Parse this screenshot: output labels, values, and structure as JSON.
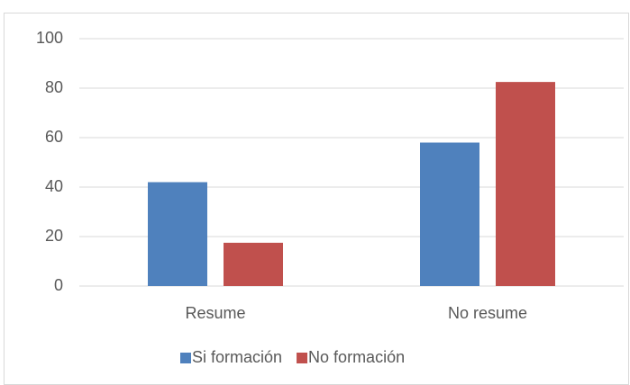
{
  "chart_data": {
    "type": "bar",
    "categories": [
      "Resume",
      "No resume"
    ],
    "series": [
      {
        "name": "Si formación",
        "color": "#4f81bd",
        "values": [
          42,
          58
        ]
      },
      {
        "name": "No formación",
        "color": "#c0504d",
        "values": [
          17.5,
          82.5
        ]
      }
    ],
    "ylim": [
      0,
      100
    ],
    "yticks": [
      0,
      20,
      40,
      60,
      80,
      100
    ],
    "grid": true,
    "legend": "bottom"
  }
}
